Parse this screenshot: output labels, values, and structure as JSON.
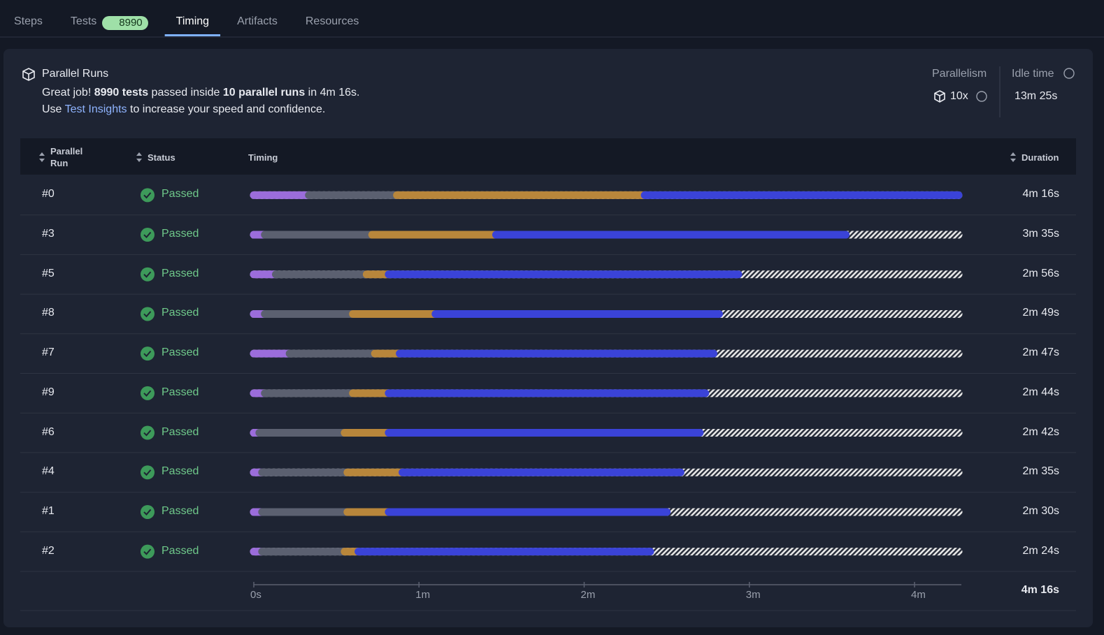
{
  "tabs": [
    {
      "label": "Steps"
    },
    {
      "label": "Tests",
      "badge": "8990"
    },
    {
      "label": "Timing",
      "active": true
    },
    {
      "label": "Artifacts"
    },
    {
      "label": "Resources"
    }
  ],
  "summary": {
    "title": "Parallel Runs",
    "line1": [
      "Great job! ",
      "8990 tests",
      " passed inside ",
      "10 parallel runs",
      " in 4m 16s."
    ],
    "line2": [
      "Use ",
      "Test Insights",
      " to increase your speed and confidence."
    ]
  },
  "stats": [
    {
      "label": "Parallelism",
      "value": "10x"
    },
    {
      "label": "Idle time",
      "value": "13m 25s"
    }
  ],
  "table": {
    "columns": [
      "Parallel Run",
      "Status",
      "Timing",
      "Duration"
    ],
    "segment_colors": [
      "#9b6ddb",
      "#5b6070",
      "#b8863b",
      "#3a43d8"
    ],
    "rows": [
      {
        "run": "#0",
        "status": "Passed",
        "segments": [
          20,
          32,
          90,
          114
        ],
        "duration": "4m 16s"
      },
      {
        "run": "#3",
        "status": "Passed",
        "segments": [
          4,
          39,
          45,
          127
        ],
        "duration": "3m 35s"
      },
      {
        "run": "#5",
        "status": "Passed",
        "segments": [
          8,
          33,
          8,
          127
        ],
        "duration": "2m 56s"
      },
      {
        "run": "#8",
        "status": "Passed",
        "segments": [
          4,
          32,
          30,
          103
        ],
        "duration": "2m 49s"
      },
      {
        "run": "#7",
        "status": "Passed",
        "segments": [
          13,
          31,
          9,
          114
        ],
        "duration": "2m 47s"
      },
      {
        "run": "#9",
        "status": "Passed",
        "segments": [
          4,
          32,
          13,
          115
        ],
        "duration": "2m 44s"
      },
      {
        "run": "#6",
        "status": "Passed",
        "segments": [
          2,
          31,
          16,
          113
        ],
        "duration": "2m 42s"
      },
      {
        "run": "#4",
        "status": "Passed",
        "segments": [
          3,
          31,
          20,
          101
        ],
        "duration": "2m 35s"
      },
      {
        "run": "#1",
        "status": "Passed",
        "segments": [
          3,
          31,
          15,
          101
        ],
        "duration": "2m 30s"
      },
      {
        "run": "#2",
        "status": "Passed",
        "segments": [
          3,
          30,
          5,
          106
        ],
        "duration": "2m 24s"
      }
    ],
    "total": "4m 16s"
  },
  "timing_axis": {
    "xlim": [
      0,
      256
    ],
    "xticks": [
      {
        "value": 0,
        "label": "0s"
      },
      {
        "value": 60,
        "label": "1m"
      },
      {
        "value": 120,
        "label": "2m"
      },
      {
        "value": 180,
        "label": "3m"
      },
      {
        "value": 240,
        "label": "4m"
      }
    ]
  }
}
